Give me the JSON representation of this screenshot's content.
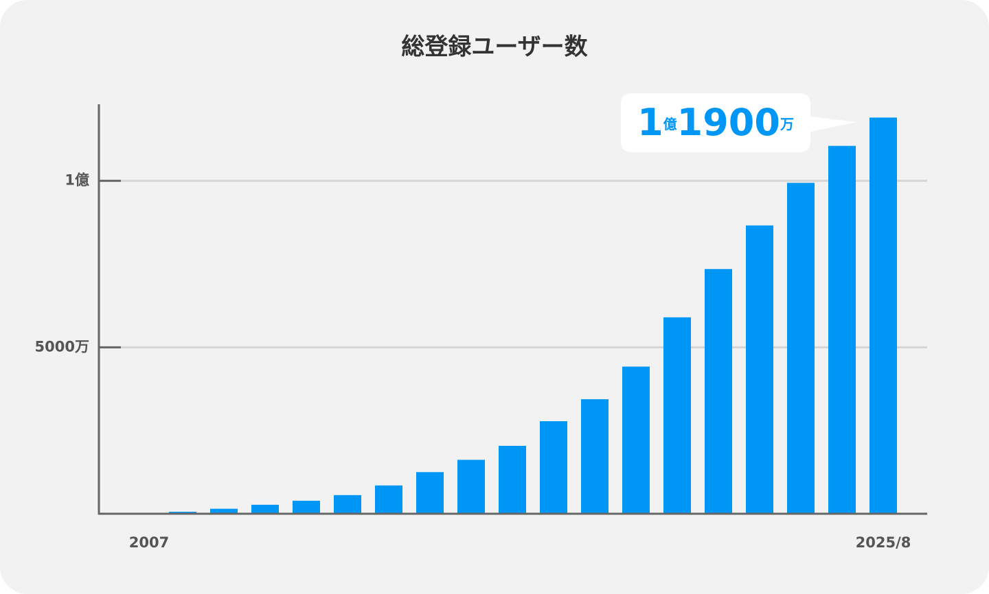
{
  "chart_data": {
    "type": "bar",
    "title": "総登録ユーザー数",
    "categories": [
      "2007",
      null,
      null,
      null,
      null,
      null,
      null,
      null,
      null,
      null,
      null,
      null,
      null,
      null,
      null,
      null,
      null,
      null,
      "2025/8"
    ],
    "values": [
      0,
      60,
      150,
      270,
      390,
      560,
      850,
      1250,
      1620,
      2040,
      2780,
      3440,
      4420,
      5900,
      7350,
      8660,
      9940,
      11050,
      11900
    ],
    "value_labels": [
      null,
      null,
      null,
      null,
      null,
      null,
      null,
      null,
      null,
      null,
      null,
      null,
      null,
      null,
      null,
      null,
      null,
      null,
      "1億1900万"
    ],
    "color": "#0096f5",
    "ylim": [
      0,
      12300
    ],
    "yticks": [
      {
        "value": 5000,
        "label": "5000万"
      },
      {
        "value": 10000,
        "label": "1億"
      }
    ],
    "grid": true
  }
}
